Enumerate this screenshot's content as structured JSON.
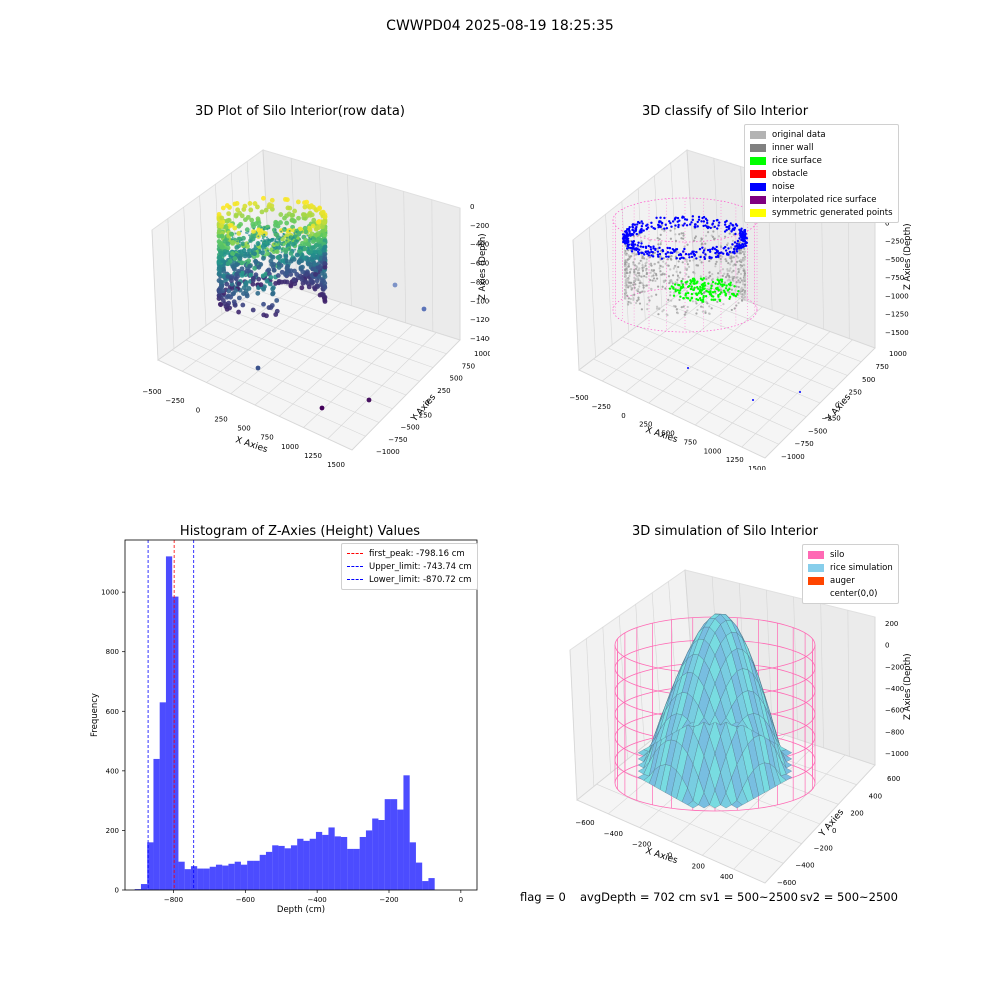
{
  "suptitle": "CWWPD04 2025-08-19 18:25:35",
  "footer": {
    "flag": "flag = 0",
    "avg": "avgDepth = 702 cm",
    "sv1": "sv1 = 500~2500",
    "sv2": "sv2 = 500~2500"
  },
  "chart_data": [
    {
      "type": "scatter",
      "projection": "3d",
      "title": "3D Plot of Silo Interior(row data)",
      "xlabel": "X Axies",
      "ylabel": "Y Axies",
      "zlabel": "Z Axies (Depth)",
      "xticks": [
        "−500",
        "−250",
        "0",
        "250",
        "500",
        "750",
        "1000",
        "1250",
        "1500"
      ],
      "yticks": [
        "−1000",
        "−750",
        "−500",
        "−250",
        "0",
        "250",
        "500",
        "750",
        "1000"
      ],
      "zticks": [
        "0",
        "−200",
        "−400",
        "−600",
        "−800",
        "−1000",
        "−1200",
        "−1400"
      ],
      "colormap": "viridis",
      "outliers": [
        {
          "x": 1350,
          "y": -250,
          "z": -1400
        },
        {
          "x": 1050,
          "y": -300,
          "z": -1400
        },
        {
          "x": 100,
          "y": -250,
          "z": -1300
        },
        {
          "x": 1400,
          "y": 400,
          "z": -1000
        },
        {
          "x": 1300,
          "y": 700,
          "z": -1000
        }
      ]
    },
    {
      "type": "scatter",
      "projection": "3d",
      "title": "3D classify of Silo Interior",
      "xlabel": "X Axies",
      "ylabel": "Y Axies",
      "zlabel": "Z Axies (Depth)",
      "xticks": [
        "−500",
        "−250",
        "0",
        "250",
        "500",
        "750",
        "1000",
        "1250",
        "1500"
      ],
      "yticks": [
        "−1000",
        "−750",
        "−500",
        "−250",
        "0",
        "250",
        "500",
        "750",
        "1000"
      ],
      "zticks": [
        "250",
        "0",
        "−250",
        "−500",
        "−750",
        "−1000",
        "−1250",
        "−1500"
      ],
      "legend": [
        {
          "label": "original data",
          "color": "#b3b3b3"
        },
        {
          "label": "inner wall",
          "color": "#808080"
        },
        {
          "label": "rice surface",
          "color": "#00ff00"
        },
        {
          "label": "obstacle",
          "color": "#ff0000"
        },
        {
          "label": "noise",
          "color": "#0000ff"
        },
        {
          "label": "interpolated rice surface",
          "color": "#800080"
        },
        {
          "label": "symmetric generated points",
          "color": "#ffff00"
        }
      ]
    },
    {
      "type": "bar",
      "title": "Histogram of Z-Axies (Height) Values",
      "xlabel": "Depth (cm)",
      "ylabel": "Frequency",
      "xlim": [
        -935,
        45
      ],
      "ylim": [
        0,
        1175
      ],
      "xticks": [
        -800,
        -600,
        -400,
        -200,
        0
      ],
      "xtick_labels": [
        "−800",
        "−600",
        "−400",
        "−200",
        "0"
      ],
      "yticks": [
        0,
        200,
        400,
        600,
        800,
        1000
      ],
      "bin_width": 17.4,
      "bin_start": -908,
      "color": "#0000ff",
      "values": [
        3,
        20,
        160,
        440,
        630,
        1120,
        985,
        95,
        70,
        80,
        72,
        72,
        78,
        85,
        82,
        88,
        95,
        85,
        98,
        98,
        118,
        128,
        150,
        148,
        140,
        150,
        172,
        165,
        172,
        195,
        185,
        210,
        180,
        178,
        138,
        138,
        178,
        200,
        240,
        235,
        305,
        305,
        270,
        385,
        160,
        92,
        30,
        40
      ],
      "vlines": [
        {
          "x": -798.16,
          "color": "#ff0000",
          "label": "first_peak: -798.16 cm"
        },
        {
          "x": -743.74,
          "color": "#0000ff",
          "label": "Upper_limit: -743.74 cm"
        },
        {
          "x": -870.72,
          "color": "#0000ff",
          "label": "Lower_limit: -870.72 cm"
        }
      ]
    },
    {
      "type": "surface",
      "projection": "3d",
      "title": "3D simulation of Silo Interior",
      "xlabel": "X Axies",
      "ylabel": "Y Axies",
      "zlabel": "Z Axies (Depth)",
      "xticks": [
        "−600",
        "−400",
        "−200",
        "0",
        "200",
        "400",
        "600"
      ],
      "yticks": [
        "−600",
        "−400",
        "−200",
        "0",
        "200",
        "400",
        "600"
      ],
      "zticks": [
        "200",
        "0",
        "−200",
        "−400",
        "−600",
        "−800",
        "−1000"
      ],
      "legend": [
        {
          "label": "silo",
          "color": "#ff69b4"
        },
        {
          "label": "rice simulation",
          "color": "#87ceeb"
        },
        {
          "label": "auger",
          "color": "#ff4500"
        },
        {
          "label": "center(0,0)",
          "color": "#ffffff"
        }
      ]
    }
  ]
}
